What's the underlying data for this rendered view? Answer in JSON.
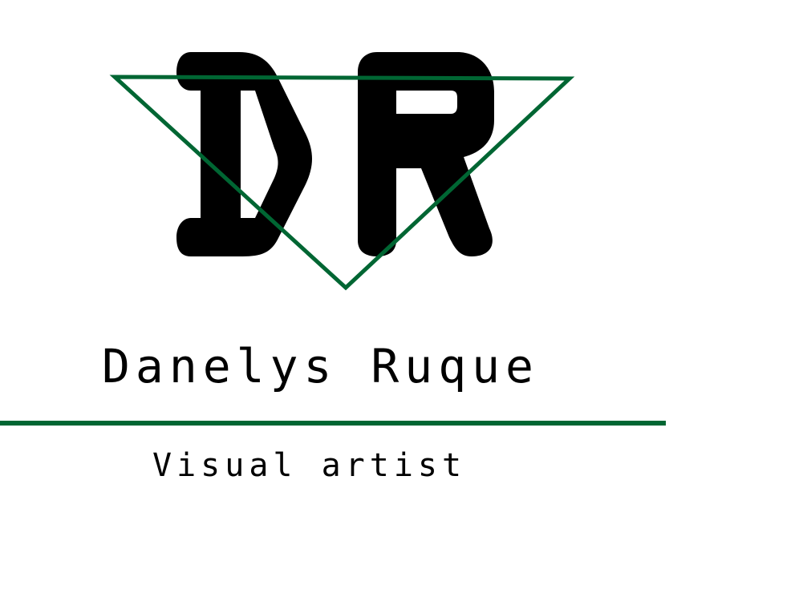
{
  "logo": {
    "monogram": "DR",
    "letter_color": "#000000",
    "triangle_color": "#006633"
  },
  "name": "Danelys Ruque",
  "divider_color": "#006633",
  "subtitle": "Visual artist"
}
